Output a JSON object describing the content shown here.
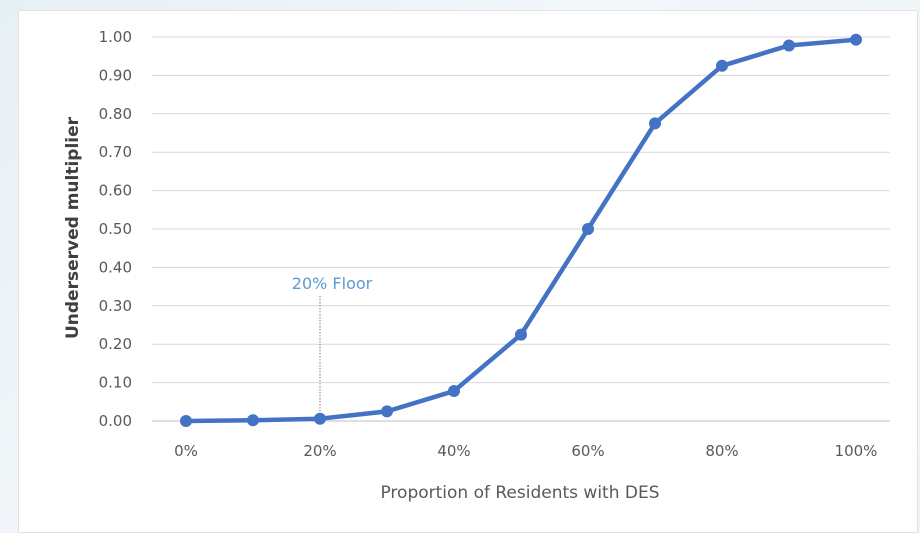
{
  "chart_data": {
    "type": "line",
    "title": "",
    "xlabel": "Proportion of Residents with DES",
    "ylabel": "Underserved multiplier",
    "x": [
      0,
      10,
      20,
      30,
      40,
      50,
      60,
      70,
      80,
      90,
      100
    ],
    "x_tick_labels": [
      "0%",
      "20%",
      "40%",
      "60%",
      "80%",
      "100%"
    ],
    "y_tick_labels": [
      "0.00",
      "0.10",
      "0.20",
      "0.30",
      "0.40",
      "0.50",
      "0.60",
      "0.70",
      "0.80",
      "0.90",
      "1.00"
    ],
    "xlim": [
      0,
      100
    ],
    "ylim": [
      0,
      1
    ],
    "grid": "horizontal",
    "legend": "none",
    "series": [
      {
        "color": "#4472c4",
        "values": [
          0.0,
          0.002,
          0.006,
          0.025,
          0.078,
          0.225,
          0.5,
          0.775,
          0.925,
          0.978,
          0.993
        ]
      }
    ],
    "annotations": [
      {
        "text": "20% Floor",
        "x": 20,
        "color": "#5b9bd5"
      }
    ]
  }
}
